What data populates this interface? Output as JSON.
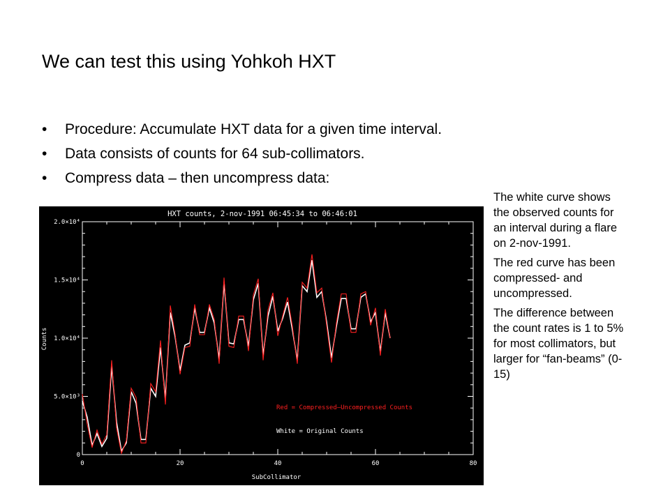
{
  "slide": {
    "title": "We can test this using Yohkoh HXT",
    "bullets": [
      "Procedure: Accumulate HXT data for a given time interval.",
      "Data consists of counts for 64 sub-collimators.",
      "Compress data – then uncompress data:"
    ],
    "bullet_glyph": "•",
    "notes": [
      "The white curve shows the observed counts for an interval during a flare on 2-nov-1991.",
      "The red curve has been compressed- and uncompressed.",
      "The difference between the count rates is 1 to 5% for most collimators, but larger for “fan-beams” (0-15)"
    ]
  },
  "colors": {
    "plot_background": "#000000",
    "axis": "#ffffff",
    "white_series": "#ffffff",
    "red_series": "#ff2020"
  },
  "chart_data": {
    "type": "line",
    "title": "HXT counts, 2-nov-1991 06:45:34 to 06:46:01",
    "xlabel": "SubCollimator",
    "ylabel": "Counts",
    "xlim": [
      0,
      80
    ],
    "ylim": [
      0,
      20000
    ],
    "x_ticks": [
      0,
      20,
      40,
      60,
      80
    ],
    "x_tick_labels": [
      "0",
      "20",
      "40",
      "60",
      "80"
    ],
    "y_ticks": [
      0,
      5000,
      10000,
      15000,
      20000
    ],
    "y_tick_labels": [
      "0",
      "5.0×10³",
      "1.0×10⁴",
      "1.5×10⁴",
      "2.0×10⁴"
    ],
    "grid": false,
    "annotations": [
      "Red = Compressed–Uncompressed Counts",
      "White = Original Counts"
    ],
    "x": [
      0,
      1,
      2,
      3,
      4,
      5,
      6,
      7,
      8,
      9,
      10,
      11,
      12,
      13,
      14,
      15,
      16,
      17,
      18,
      19,
      20,
      21,
      22,
      23,
      24,
      25,
      26,
      27,
      28,
      29,
      30,
      31,
      32,
      33,
      34,
      35,
      36,
      37,
      38,
      39,
      40,
      41,
      42,
      43,
      44,
      45,
      46,
      47,
      48,
      49,
      50,
      51,
      52,
      53,
      54,
      55,
      56,
      57,
      58,
      59,
      60,
      61,
      62,
      63
    ],
    "series": [
      {
        "color": "#ffffff",
        "values": [
          4600,
          3200,
          800,
          1800,
          700,
          1400,
          7600,
          2800,
          300,
          1000,
          5400,
          4400,
          1300,
          1300,
          5700,
          5000,
          9200,
          4800,
          12200,
          10100,
          7200,
          9400,
          9600,
          12600,
          10500,
          10500,
          12600,
          11300,
          8200,
          14800,
          9600,
          9500,
          11600,
          11600,
          9300,
          13300,
          14700,
          8500,
          11900,
          13600,
          10600,
          11700,
          13100,
          10700,
          8100,
          14500,
          14000,
          16700,
          13500,
          14000,
          11400,
          8300,
          11000,
          13400,
          13400,
          10800,
          10800,
          13500,
          13800,
          11400,
          12200,
          8800,
          12200,
          10000
        ]
      },
      {
        "color": "#ff2020",
        "values": [
          5200,
          2600,
          600,
          2100,
          900,
          1700,
          8100,
          2300,
          100,
          1200,
          5700,
          4900,
          1000,
          1000,
          6100,
          5400,
          9800,
          4300,
          12800,
          10300,
          6900,
          9200,
          9300,
          12900,
          10300,
          10300,
          12900,
          11600,
          7800,
          15200,
          9300,
          9200,
          11900,
          11900,
          8900,
          13700,
          15100,
          8100,
          12400,
          13900,
          10200,
          11900,
          13500,
          11000,
          7800,
          14800,
          14300,
          17200,
          13900,
          14300,
          11100,
          7900,
          11300,
          13800,
          13800,
          10500,
          10500,
          13800,
          14000,
          11100,
          12600,
          8500,
          12500,
          10000
        ]
      }
    ]
  }
}
